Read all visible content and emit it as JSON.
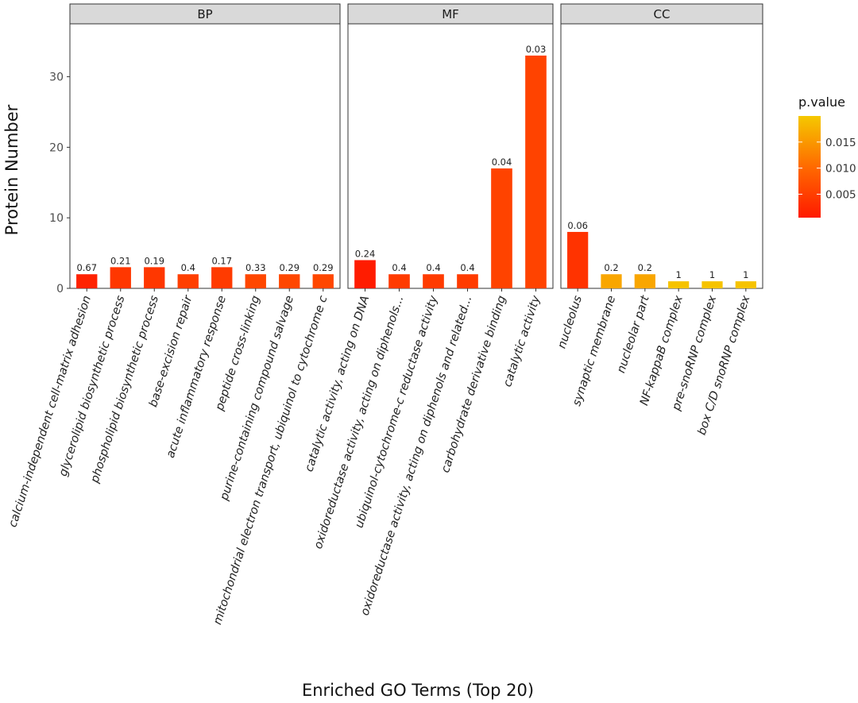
{
  "chart_data": {
    "type": "bar",
    "xlabel": "Enriched GO Terms (Top 20)",
    "ylabel": "Protein Number",
    "ylim": [
      0,
      37.5
    ],
    "yticks": [
      0,
      10,
      20,
      30
    ],
    "legend": {
      "title": "p.value",
      "position": "right",
      "ticks": [
        "0.005",
        "0.010",
        "0.015"
      ],
      "tick_values": [
        0.005,
        0.01,
        0.015
      ],
      "range": [
        0.0005,
        0.02
      ],
      "colors": [
        "#ff1a00",
        "#ff6a00",
        "#f5c800"
      ]
    },
    "facets": [
      {
        "name": "BP",
        "terms": [
          {
            "term": "calcium-independent cell-matrix adhesion",
            "count": 2,
            "label": "0.67",
            "pvalue": 0.0015
          },
          {
            "term": "glycerolipid biosynthetic process",
            "count": 3,
            "label": "0.21",
            "pvalue": 0.004
          },
          {
            "term": "phospholipid biosynthetic process",
            "count": 3,
            "label": "0.19",
            "pvalue": 0.004
          },
          {
            "term": "base-excision repair",
            "count": 2,
            "label": "0.4",
            "pvalue": 0.005
          },
          {
            "term": "acute inflammatory response",
            "count": 3,
            "label": "0.17",
            "pvalue": 0.0045
          },
          {
            "term": "peptide cross-linking",
            "count": 2,
            "label": "0.33",
            "pvalue": 0.006
          },
          {
            "term": "purine-containing compound salvage",
            "count": 2,
            "label": "0.29",
            "pvalue": 0.006
          },
          {
            "term": "mitochondrial electron transport, ubiquinol to cytochrome c",
            "count": 2,
            "label": "0.29",
            "pvalue": 0.006
          }
        ]
      },
      {
        "name": "MF",
        "terms": [
          {
            "term": "catalytic activity, acting on DNA",
            "count": 4,
            "label": "0.24",
            "pvalue": 0.0008
          },
          {
            "term": "oxidoreductase activity, acting on diphenols...",
            "count": 2,
            "label": "0.4",
            "pvalue": 0.0045
          },
          {
            "term": "ubiquinol-cytochrome-c reductase activity",
            "count": 2,
            "label": "0.4",
            "pvalue": 0.0045
          },
          {
            "term": "oxidoreductase activity, acting on diphenols and related...",
            "count": 2,
            "label": "0.4",
            "pvalue": 0.0045
          },
          {
            "term": "carbohydrate derivative binding",
            "count": 17,
            "label": "0.04",
            "pvalue": 0.0055
          },
          {
            "term": "catalytic activity",
            "count": 33,
            "label": "0.03",
            "pvalue": 0.0055
          }
        ]
      },
      {
        "name": "CC",
        "terms": [
          {
            "term": "nucleolus",
            "count": 8,
            "label": "0.06",
            "pvalue": 0.0035
          },
          {
            "term": "synaptic membrane",
            "count": 2,
            "label": "0.2",
            "pvalue": 0.0165
          },
          {
            "term": "nucleolar part",
            "count": 2,
            "label": "0.2",
            "pvalue": 0.0165
          },
          {
            "term": "NF-kappaB complex",
            "count": 1,
            "label": "1",
            "pvalue": 0.0195
          },
          {
            "term": "pre-snoRNP complex",
            "count": 1,
            "label": "1",
            "pvalue": 0.0195
          },
          {
            "term": "box C/D snoRNP complex",
            "count": 1,
            "label": "1",
            "pvalue": 0.0195
          }
        ]
      }
    ]
  }
}
